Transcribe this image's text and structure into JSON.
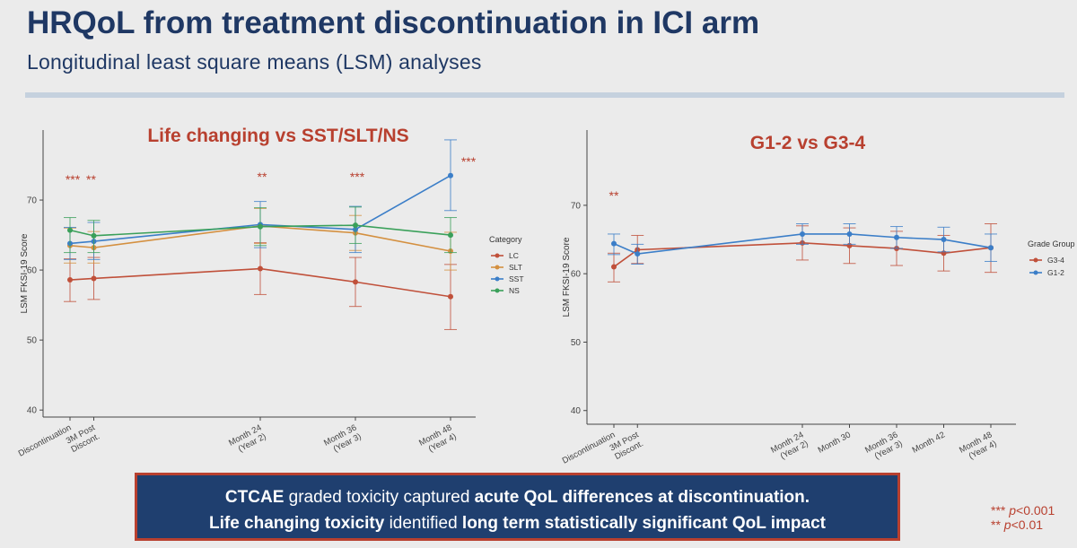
{
  "slide": {
    "title": "HRQoL from treatment discontinuation in ICI arm",
    "subtitle": "Longitudinal least square means (LSM) analyses"
  },
  "callout": {
    "line1_a": "CTCAE",
    "line1_b": " graded toxicity captured ",
    "line1_c": "acute QoL differences at discontinuation.",
    "line2_a": "Life changing toxicity",
    "line2_b": " identified ",
    "line2_c": "long term statistically significant QoL impact"
  },
  "significance_legend": [
    {
      "stars": "***",
      "text": "p",
      "suffix": "<0.001"
    },
    {
      "stars": "**",
      "text": "p",
      "suffix": "<0.01"
    }
  ],
  "colors": {
    "title": "#1f3864",
    "accent_red": "#b8402f",
    "LC": "#c0503a",
    "SLT": "#d49040",
    "SST": "#3b7ec8",
    "NS": "#3aa05a",
    "G3-4": "#c0503a",
    "G1-2": "#3b7ec8"
  },
  "chart_data": [
    {
      "type": "line",
      "title": "Life changing vs SST/SLT/NS",
      "ylabel": "LSM FKSI-19 Score",
      "ylim": [
        39,
        80
      ],
      "yticks": [
        40,
        50,
        60,
        70
      ],
      "categories": [
        "Discontinuation",
        "3M Post\nDiscont.",
        "Month 24\n(Year 2)",
        "Month 36\n(Year 3)",
        "Month 48\n(Year 4)"
      ],
      "x_months": [
        0,
        3,
        24,
        36,
        48
      ],
      "legend_title": "Category",
      "significance": [
        "***",
        "**",
        "**",
        "***",
        "***"
      ],
      "series": [
        {
          "name": "LC",
          "values": [
            58.6,
            58.8,
            60.2,
            58.3,
            56.2
          ],
          "lower": [
            55.5,
            55.8,
            56.5,
            54.8,
            51.5
          ],
          "upper": [
            61.6,
            61.8,
            63.9,
            61.8,
            60.8
          ]
        },
        {
          "name": "SLT",
          "values": [
            63.5,
            63.2,
            66.3,
            65.3,
            62.7
          ],
          "lower": [
            61.0,
            61.0,
            63.8,
            62.8,
            60.0
          ],
          "upper": [
            66.0,
            65.5,
            68.8,
            67.8,
            65.4
          ]
        },
        {
          "name": "SST",
          "values": [
            63.8,
            64.1,
            66.5,
            65.8,
            73.5
          ],
          "lower": [
            61.5,
            61.5,
            63.2,
            62.5,
            68.5
          ],
          "upper": [
            66.1,
            66.8,
            69.8,
            69.1,
            78.6
          ]
        },
        {
          "name": "NS",
          "values": [
            65.7,
            64.9,
            66.2,
            66.4,
            65.0
          ],
          "lower": [
            62.5,
            62.5,
            63.5,
            63.8,
            62.5
          ],
          "upper": [
            67.5,
            67.1,
            68.9,
            69.0,
            67.5
          ]
        }
      ]
    },
    {
      "type": "line",
      "title": "G1-2 vs G3-4",
      "ylabel": "LSM FKSI-19 Score",
      "ylim": [
        38,
        81
      ],
      "yticks": [
        40,
        50,
        60,
        70
      ],
      "categories": [
        "Discontinuation",
        "3M Post\nDiscont.",
        "Month 24\n(Year 2)",
        "Month 30",
        "Month 36\n(Year 3)",
        "Month 42",
        "Month 48\n(Year 4)"
      ],
      "x_months": [
        0,
        3,
        24,
        30,
        36,
        42,
        48
      ],
      "legend_title": "Grade Group",
      "significance": [
        "**",
        "",
        "",
        "",
        "",
        "",
        ""
      ],
      "series": [
        {
          "name": "G3-4",
          "values": [
            61.0,
            63.5,
            64.5,
            64.1,
            63.7,
            63.0,
            63.8
          ],
          "lower": [
            58.8,
            61.5,
            62.0,
            61.5,
            61.2,
            60.4,
            60.2
          ],
          "upper": [
            63.0,
            65.6,
            67.0,
            66.7,
            66.2,
            65.6,
            67.3
          ]
        },
        {
          "name": "G1-2",
          "values": [
            64.4,
            62.9,
            65.8,
            65.8,
            65.3,
            65.0,
            63.8
          ],
          "lower": [
            62.8,
            61.4,
            64.3,
            64.3,
            63.7,
            63.2,
            61.8
          ],
          "upper": [
            65.8,
            64.3,
            67.3,
            67.3,
            66.9,
            66.8,
            65.8
          ]
        }
      ]
    }
  ]
}
